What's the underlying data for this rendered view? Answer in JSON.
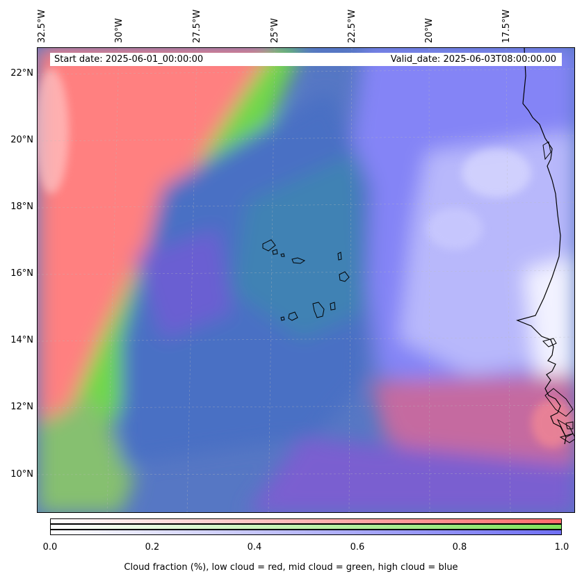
{
  "header": {
    "start_date": "Start date: 2025-06-01_00:00:00",
    "valid_date": "Valid_date: 2025-06-03T08:00:00.00"
  },
  "axes": {
    "lon_labels": [
      "32.5°W",
      "30°W",
      "27.5°W",
      "25°W",
      "22.5°W",
      "20°W",
      "17.5°W"
    ],
    "lat_labels": [
      "22°N",
      "20°N",
      "18°N",
      "16°N",
      "14°N",
      "12°N",
      "10°N"
    ]
  },
  "colorbar": {
    "ticks": [
      "0.0",
      "0.2",
      "0.4",
      "0.6",
      "0.8",
      "1.0"
    ],
    "label": "Cloud fraction (%), low cloud = red, mid cloud = green, high cloud = blue",
    "low_color": "#ff6b6b",
    "mid_color": "#7fe35a",
    "high_color": "#6f6ff2"
  },
  "colors": {
    "low_cloud": "#ff8080",
    "mid_cloud": "#70d848",
    "high_cloud": "#7f7ff5",
    "mixed": "#4f6fbf"
  }
}
